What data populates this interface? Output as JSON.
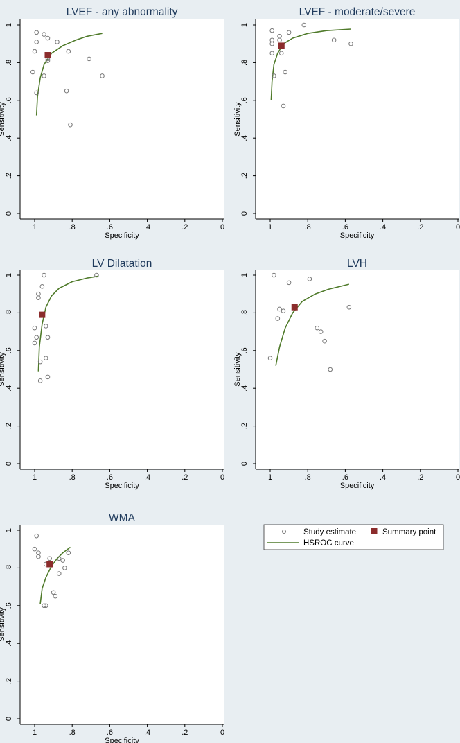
{
  "figure": {
    "background": "#e8eef2",
    "panel_background": "#ffffff",
    "title_color": "#1f3a5c",
    "point_color": "#777777",
    "summary_color": "#8b2c2c",
    "curve_color": "#4f7a2a"
  },
  "legend": {
    "study_label": "Study estimate",
    "summary_label": "Summary point",
    "curve_label": "HSROC curve"
  },
  "chart_data": [
    {
      "type": "scatter",
      "title": "LVEF - any abnormality",
      "xlabel": "Specificity",
      "ylabel": "Sensitivity",
      "xlim": [
        1,
        0
      ],
      "ylim": [
        0,
        1
      ],
      "xticks": [
        "1",
        ".8",
        ".6",
        ".4",
        ".2",
        "0"
      ],
      "yticks": [
        "0",
        ".2",
        ".4",
        ".6",
        ".8",
        "1"
      ],
      "study_points": [
        [
          0.99,
          0.96
        ],
        [
          0.99,
          0.91
        ],
        [
          1.0,
          0.86
        ],
        [
          0.95,
          0.95
        ],
        [
          0.93,
          0.93
        ],
        [
          0.88,
          0.91
        ],
        [
          0.93,
          0.82
        ],
        [
          0.93,
          0.81
        ],
        [
          0.99,
          0.64
        ],
        [
          0.95,
          0.73
        ],
        [
          1.01,
          0.75
        ],
        [
          0.82,
          0.86
        ],
        [
          0.71,
          0.82
        ],
        [
          0.64,
          0.73
        ],
        [
          0.83,
          0.65
        ],
        [
          0.81,
          0.47
        ]
      ],
      "summary_point": [
        0.93,
        0.84
      ],
      "curve": [
        [
          0.99,
          0.52
        ],
        [
          0.985,
          0.62
        ],
        [
          0.97,
          0.72
        ],
        [
          0.95,
          0.79
        ],
        [
          0.91,
          0.85
        ],
        [
          0.85,
          0.89
        ],
        [
          0.78,
          0.92
        ],
        [
          0.72,
          0.94
        ],
        [
          0.64,
          0.955
        ]
      ]
    },
    {
      "type": "scatter",
      "title": "LVEF - moderate/severe",
      "xlabel": "Specificity",
      "ylabel": "Sensitivity",
      "xlim": [
        1,
        0
      ],
      "ylim": [
        0,
        1
      ],
      "xticks": [
        "1",
        ".8",
        ".6",
        ".4",
        ".2",
        "0"
      ],
      "yticks": [
        "0",
        ".2",
        ".4",
        ".6",
        ".8",
        "1"
      ],
      "study_points": [
        [
          0.99,
          0.97
        ],
        [
          0.99,
          0.92
        ],
        [
          0.99,
          0.9
        ],
        [
          0.99,
          0.85
        ],
        [
          0.95,
          0.94
        ],
        [
          0.95,
          0.92
        ],
        [
          0.9,
          0.96
        ],
        [
          0.82,
          1.0
        ],
        [
          0.94,
          0.85
        ],
        [
          0.92,
          0.75
        ],
        [
          0.98,
          0.73
        ],
        [
          0.93,
          0.57
        ],
        [
          0.66,
          0.92
        ],
        [
          0.57,
          0.9
        ]
      ],
      "summary_point": [
        0.94,
        0.89
      ],
      "curve": [
        [
          0.995,
          0.6
        ],
        [
          0.99,
          0.7
        ],
        [
          0.98,
          0.79
        ],
        [
          0.96,
          0.85
        ],
        [
          0.93,
          0.9
        ],
        [
          0.88,
          0.93
        ],
        [
          0.8,
          0.955
        ],
        [
          0.7,
          0.97
        ],
        [
          0.57,
          0.978
        ]
      ]
    },
    {
      "type": "scatter",
      "title": "LV Dilatation",
      "xlabel": "Specificity",
      "ylabel": "Sensitivity",
      "xlim": [
        1,
        0
      ],
      "ylim": [
        0,
        1
      ],
      "xticks": [
        "1",
        ".8",
        ".6",
        ".4",
        ".2",
        "0"
      ],
      "yticks": [
        "0",
        ".2",
        ".4",
        ".6",
        ".8",
        "1"
      ],
      "study_points": [
        [
          0.95,
          1.0
        ],
        [
          0.96,
          0.94
        ],
        [
          0.98,
          0.9
        ],
        [
          0.98,
          0.88
        ],
        [
          1.0,
          0.72
        ],
        [
          0.99,
          0.67
        ],
        [
          1.0,
          0.64
        ],
        [
          0.94,
          0.73
        ],
        [
          0.93,
          0.67
        ],
        [
          0.94,
          0.56
        ],
        [
          0.97,
          0.54
        ],
        [
          0.93,
          0.46
        ],
        [
          0.97,
          0.44
        ],
        [
          0.67,
          1.0
        ]
      ],
      "summary_point": [
        0.96,
        0.79
      ],
      "curve": [
        [
          0.98,
          0.49
        ],
        [
          0.975,
          0.62
        ],
        [
          0.96,
          0.74
        ],
        [
          0.94,
          0.83
        ],
        [
          0.91,
          0.89
        ],
        [
          0.87,
          0.93
        ],
        [
          0.8,
          0.965
        ],
        [
          0.72,
          0.985
        ],
        [
          0.66,
          0.995
        ]
      ]
    },
    {
      "type": "scatter",
      "title": "LVH",
      "xlabel": "Specificity",
      "ylabel": "Sensitivity",
      "xlim": [
        1,
        0
      ],
      "ylim": [
        0,
        1
      ],
      "xticks": [
        "1",
        ".8",
        ".6",
        ".4",
        ".2",
        "0"
      ],
      "yticks": [
        "0",
        ".2",
        ".4",
        ".6",
        ".8",
        "1"
      ],
      "study_points": [
        [
          0.98,
          1.0
        ],
        [
          0.9,
          0.96
        ],
        [
          0.79,
          0.98
        ],
        [
          0.95,
          0.82
        ],
        [
          0.93,
          0.81
        ],
        [
          0.96,
          0.77
        ],
        [
          1.0,
          0.56
        ],
        [
          0.75,
          0.72
        ],
        [
          0.73,
          0.7
        ],
        [
          0.71,
          0.65
        ],
        [
          0.68,
          0.5
        ],
        [
          0.58,
          0.83
        ]
      ],
      "summary_point": [
        0.87,
        0.83
      ],
      "curve": [
        [
          0.97,
          0.52
        ],
        [
          0.95,
          0.62
        ],
        [
          0.92,
          0.72
        ],
        [
          0.88,
          0.8
        ],
        [
          0.83,
          0.86
        ],
        [
          0.76,
          0.9
        ],
        [
          0.69,
          0.925
        ],
        [
          0.58,
          0.952
        ]
      ]
    },
    {
      "type": "scatter",
      "title": "WMA",
      "xlabel": "Specificity",
      "ylabel": "Sensitivity",
      "xlim": [
        1,
        0
      ],
      "ylim": [
        0,
        1
      ],
      "xticks": [
        "1",
        ".8",
        ".6",
        ".4",
        ".2",
        "0"
      ],
      "yticks": [
        "0",
        ".2",
        ".4",
        ".6",
        ".8",
        "1"
      ],
      "study_points": [
        [
          0.99,
          0.97
        ],
        [
          1.0,
          0.9
        ],
        [
          0.98,
          0.88
        ],
        [
          0.98,
          0.86
        ],
        [
          0.94,
          0.82
        ],
        [
          0.92,
          0.85
        ],
        [
          0.87,
          0.85
        ],
        [
          0.85,
          0.84
        ],
        [
          0.82,
          0.88
        ],
        [
          0.87,
          0.77
        ],
        [
          0.84,
          0.8
        ],
        [
          0.9,
          0.67
        ],
        [
          0.89,
          0.65
        ],
        [
          0.95,
          0.6
        ],
        [
          0.94,
          0.6
        ]
      ],
      "summary_point": [
        0.92,
        0.82
      ],
      "curve": [
        [
          0.97,
          0.61
        ],
        [
          0.96,
          0.69
        ],
        [
          0.94,
          0.75
        ],
        [
          0.91,
          0.81
        ],
        [
          0.88,
          0.85
        ],
        [
          0.85,
          0.88
        ],
        [
          0.81,
          0.91
        ]
      ]
    }
  ]
}
